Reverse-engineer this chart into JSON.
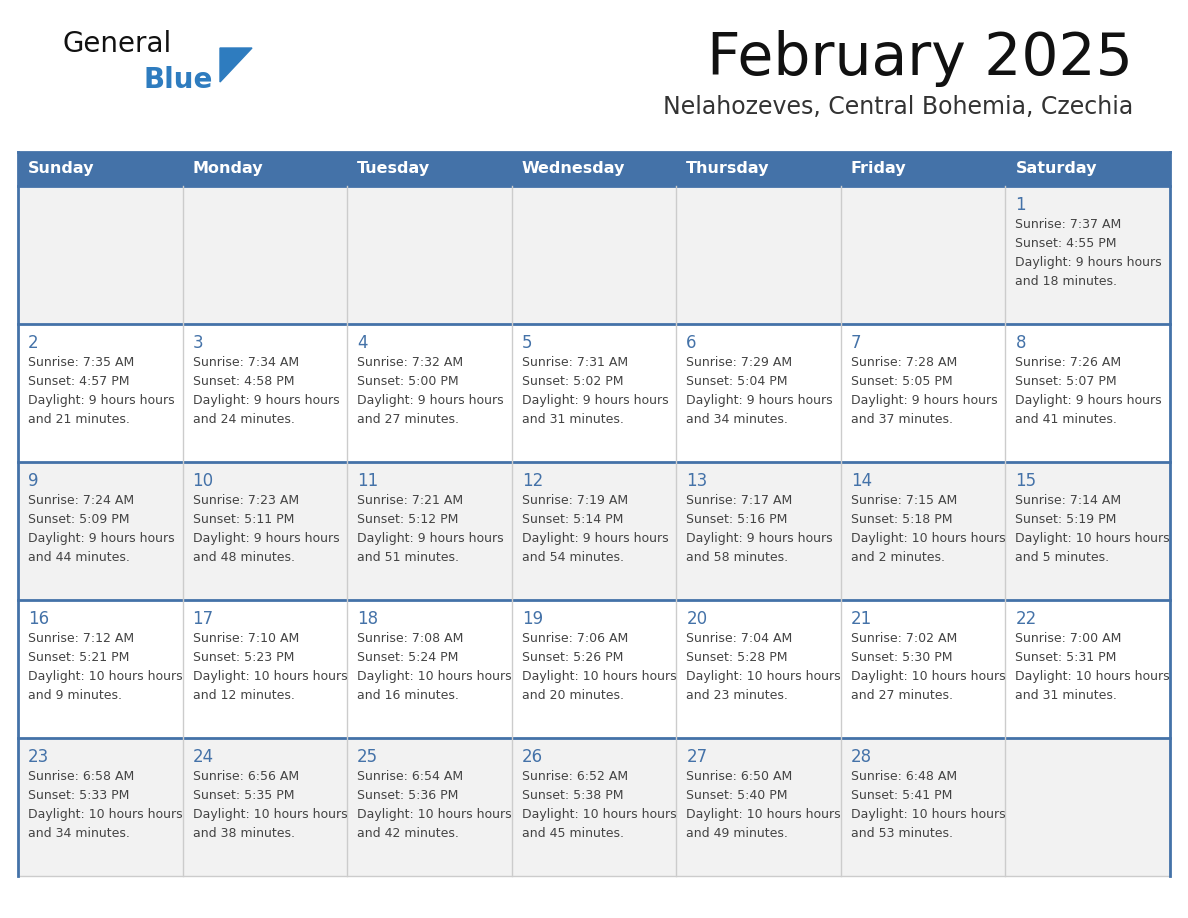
{
  "title": "February 2025",
  "subtitle": "Nelahozeves, Central Bohemia, Czechia",
  "days_of_week": [
    "Sunday",
    "Monday",
    "Tuesday",
    "Wednesday",
    "Thursday",
    "Friday",
    "Saturday"
  ],
  "header_bg": "#4472A8",
  "header_text": "#FFFFFF",
  "row0_bg": "#F2F2F2",
  "row1_bg": "#FFFFFF",
  "row2_bg": "#F2F2F2",
  "row3_bg": "#FFFFFF",
  "row4_bg": "#F2F2F2",
  "border_color": "#4472A8",
  "cell_border_color": "#CCCCCC",
  "day_num_color": "#4472A8",
  "text_color": "#444444",
  "logo_general_color": "#111111",
  "logo_blue_color": "#2E7CBF",
  "logo_triangle_color": "#2E7CBF",
  "calendar_data": [
    {
      "day": 1,
      "col": 6,
      "row": 0,
      "sunrise": "7:37 AM",
      "sunset": "4:55 PM",
      "daylight": "9 hours and 18 minutes."
    },
    {
      "day": 2,
      "col": 0,
      "row": 1,
      "sunrise": "7:35 AM",
      "sunset": "4:57 PM",
      "daylight": "9 hours and 21 minutes."
    },
    {
      "day": 3,
      "col": 1,
      "row": 1,
      "sunrise": "7:34 AM",
      "sunset": "4:58 PM",
      "daylight": "9 hours and 24 minutes."
    },
    {
      "day": 4,
      "col": 2,
      "row": 1,
      "sunrise": "7:32 AM",
      "sunset": "5:00 PM",
      "daylight": "9 hours and 27 minutes."
    },
    {
      "day": 5,
      "col": 3,
      "row": 1,
      "sunrise": "7:31 AM",
      "sunset": "5:02 PM",
      "daylight": "9 hours and 31 minutes."
    },
    {
      "day": 6,
      "col": 4,
      "row": 1,
      "sunrise": "7:29 AM",
      "sunset": "5:04 PM",
      "daylight": "9 hours and 34 minutes."
    },
    {
      "day": 7,
      "col": 5,
      "row": 1,
      "sunrise": "7:28 AM",
      "sunset": "5:05 PM",
      "daylight": "9 hours and 37 minutes."
    },
    {
      "day": 8,
      "col": 6,
      "row": 1,
      "sunrise": "7:26 AM",
      "sunset": "5:07 PM",
      "daylight": "9 hours and 41 minutes."
    },
    {
      "day": 9,
      "col": 0,
      "row": 2,
      "sunrise": "7:24 AM",
      "sunset": "5:09 PM",
      "daylight": "9 hours and 44 minutes."
    },
    {
      "day": 10,
      "col": 1,
      "row": 2,
      "sunrise": "7:23 AM",
      "sunset": "5:11 PM",
      "daylight": "9 hours and 48 minutes."
    },
    {
      "day": 11,
      "col": 2,
      "row": 2,
      "sunrise": "7:21 AM",
      "sunset": "5:12 PM",
      "daylight": "9 hours and 51 minutes."
    },
    {
      "day": 12,
      "col": 3,
      "row": 2,
      "sunrise": "7:19 AM",
      "sunset": "5:14 PM",
      "daylight": "9 hours and 54 minutes."
    },
    {
      "day": 13,
      "col": 4,
      "row": 2,
      "sunrise": "7:17 AM",
      "sunset": "5:16 PM",
      "daylight": "9 hours and 58 minutes."
    },
    {
      "day": 14,
      "col": 5,
      "row": 2,
      "sunrise": "7:15 AM",
      "sunset": "5:18 PM",
      "daylight": "10 hours and 2 minutes."
    },
    {
      "day": 15,
      "col": 6,
      "row": 2,
      "sunrise": "7:14 AM",
      "sunset": "5:19 PM",
      "daylight": "10 hours and 5 minutes."
    },
    {
      "day": 16,
      "col": 0,
      "row": 3,
      "sunrise": "7:12 AM",
      "sunset": "5:21 PM",
      "daylight": "10 hours and 9 minutes."
    },
    {
      "day": 17,
      "col": 1,
      "row": 3,
      "sunrise": "7:10 AM",
      "sunset": "5:23 PM",
      "daylight": "10 hours and 12 minutes."
    },
    {
      "day": 18,
      "col": 2,
      "row": 3,
      "sunrise": "7:08 AM",
      "sunset": "5:24 PM",
      "daylight": "10 hours and 16 minutes."
    },
    {
      "day": 19,
      "col": 3,
      "row": 3,
      "sunrise": "7:06 AM",
      "sunset": "5:26 PM",
      "daylight": "10 hours and 20 minutes."
    },
    {
      "day": 20,
      "col": 4,
      "row": 3,
      "sunrise": "7:04 AM",
      "sunset": "5:28 PM",
      "daylight": "10 hours and 23 minutes."
    },
    {
      "day": 21,
      "col": 5,
      "row": 3,
      "sunrise": "7:02 AM",
      "sunset": "5:30 PM",
      "daylight": "10 hours and 27 minutes."
    },
    {
      "day": 22,
      "col": 6,
      "row": 3,
      "sunrise": "7:00 AM",
      "sunset": "5:31 PM",
      "daylight": "10 hours and 31 minutes."
    },
    {
      "day": 23,
      "col": 0,
      "row": 4,
      "sunrise": "6:58 AM",
      "sunset": "5:33 PM",
      "daylight": "10 hours and 34 minutes."
    },
    {
      "day": 24,
      "col": 1,
      "row": 4,
      "sunrise": "6:56 AM",
      "sunset": "5:35 PM",
      "daylight": "10 hours and 38 minutes."
    },
    {
      "day": 25,
      "col": 2,
      "row": 4,
      "sunrise": "6:54 AM",
      "sunset": "5:36 PM",
      "daylight": "10 hours and 42 minutes."
    },
    {
      "day": 26,
      "col": 3,
      "row": 4,
      "sunrise": "6:52 AM",
      "sunset": "5:38 PM",
      "daylight": "10 hours and 45 minutes."
    },
    {
      "day": 27,
      "col": 4,
      "row": 4,
      "sunrise": "6:50 AM",
      "sunset": "5:40 PM",
      "daylight": "10 hours and 49 minutes."
    },
    {
      "day": 28,
      "col": 5,
      "row": 4,
      "sunrise": "6:48 AM",
      "sunset": "5:41 PM",
      "daylight": "10 hours and 53 minutes."
    }
  ]
}
